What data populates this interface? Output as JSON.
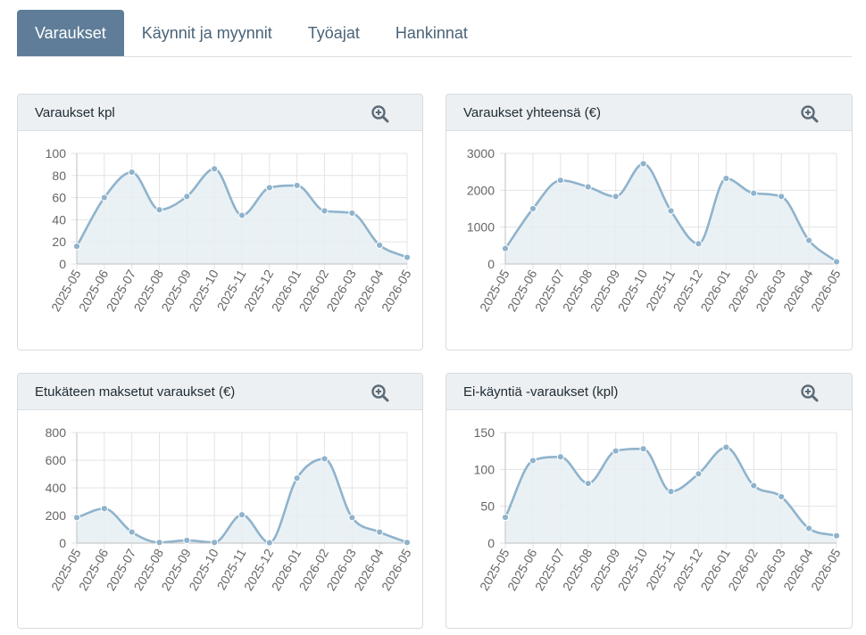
{
  "tabs": [
    {
      "label": "Varaukset",
      "active": true
    },
    {
      "label": "Käynnit ja myynnit",
      "active": false
    },
    {
      "label": "Työajat",
      "active": false
    },
    {
      "label": "Hankinnat",
      "active": false
    }
  ],
  "colors": {
    "line": "#8fb3cc",
    "fill": "#e6eef3",
    "point": "#8fb3cc",
    "grid": "#e3e3e3",
    "axis": "#666666"
  },
  "icons": {
    "zoom": "zoom-in-icon"
  },
  "chart_data": [
    {
      "type": "area",
      "title": "Varaukset kpl",
      "categories": [
        "2025-05",
        "2025-06",
        "2025-07",
        "2025-08",
        "2025-09",
        "2025-10",
        "2025-11",
        "2025-12",
        "2026-01",
        "2026-02",
        "2026-03",
        "2026-04",
        "2026-05"
      ],
      "values": [
        16,
        60,
        83,
        49,
        61,
        86,
        44,
        69,
        71,
        48,
        46,
        17,
        6
      ],
      "ylim": [
        0,
        100
      ],
      "yticks": [
        0,
        20,
        40,
        60,
        80,
        100
      ],
      "grid": true
    },
    {
      "type": "area",
      "title": "Varaukset yhteensä (€)",
      "categories": [
        "2025-05",
        "2025-06",
        "2025-07",
        "2025-08",
        "2025-09",
        "2025-10",
        "2025-11",
        "2025-12",
        "2026-01",
        "2026-02",
        "2026-03",
        "2026-04",
        "2026-05"
      ],
      "values": [
        420,
        1500,
        2270,
        2090,
        1830,
        2720,
        1440,
        550,
        2320,
        1920,
        1830,
        640,
        60
      ],
      "ylim": [
        0,
        3000
      ],
      "yticks": [
        0,
        1000,
        2000,
        3000
      ],
      "grid": true
    },
    {
      "type": "area",
      "title": "Etukäteen maksetut varaukset (€)",
      "categories": [
        "2025-05",
        "2025-06",
        "2025-07",
        "2025-08",
        "2025-09",
        "2025-10",
        "2025-11",
        "2025-12",
        "2026-01",
        "2026-02",
        "2026-03",
        "2026-04",
        "2026-05"
      ],
      "values": [
        185,
        250,
        80,
        5,
        20,
        5,
        205,
        3,
        470,
        610,
        185,
        80,
        5
      ],
      "ylim": [
        0,
        800
      ],
      "yticks": [
        0,
        200,
        400,
        600,
        800
      ],
      "grid": true
    },
    {
      "type": "area",
      "title": "Ei-käyntiä -varaukset (kpl)",
      "categories": [
        "2025-05",
        "2025-06",
        "2025-07",
        "2025-08",
        "2025-09",
        "2025-10",
        "2025-11",
        "2025-12",
        "2026-01",
        "2026-02",
        "2026-03",
        "2026-04",
        "2026-05"
      ],
      "values": [
        35,
        112,
        117,
        81,
        125,
        128,
        70,
        94,
        130,
        78,
        63,
        20,
        10
      ],
      "ylim": [
        0,
        150
      ],
      "yticks": [
        0,
        50,
        100,
        150
      ],
      "grid": true
    }
  ]
}
